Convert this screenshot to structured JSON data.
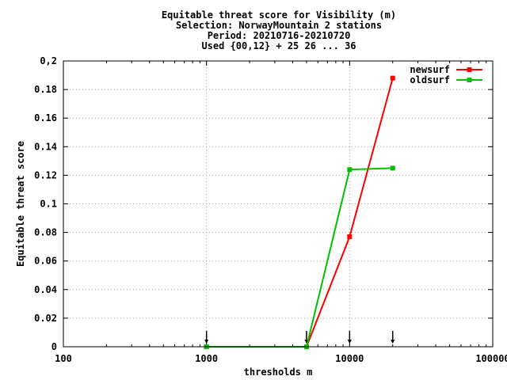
{
  "chart_data": {
    "type": "line",
    "title_lines": [
      "Equitable threat score  for Visibility (m)",
      "Selection: NorwayMountain      2 stations",
      "Period: 20210716-20210720",
      "Used {00,12} + 25 26 ... 36"
    ],
    "xlabel": "thresholds m",
    "ylabel": "Equitable threat score",
    "xscale": "log",
    "xlim": [
      100,
      100000
    ],
    "ylim": [
      0,
      0.2
    ],
    "x_ticks": [
      100,
      1000,
      10000,
      100000
    ],
    "x_tick_labels": [
      "100",
      "1000",
      "10000",
      "100000"
    ],
    "y_ticks": [
      0,
      0.02,
      0.04,
      0.06,
      0.08,
      0.1,
      0.12,
      0.14,
      0.16,
      0.18,
      0.2
    ],
    "y_tick_labels": [
      "0",
      "0.02",
      "0.04",
      "0.06",
      "0.08",
      "0.1",
      "0.12",
      "0.14",
      "0.16",
      "0.18",
      "0,2"
    ],
    "grid": true,
    "legend_position": "top-right",
    "threshold_markers": [
      1000,
      5000,
      10000,
      20000
    ],
    "series": [
      {
        "name": "newsurf",
        "color": "#ff0000",
        "x": [
          1000,
          5000,
          10000,
          20000
        ],
        "y": [
          0.0,
          0.0,
          0.077,
          0.188
        ]
      },
      {
        "name": "oldsurf",
        "color": "#00c000",
        "x": [
          1000,
          5000,
          10000,
          20000
        ],
        "y": [
          0.0,
          0.0,
          0.124,
          0.125
        ]
      }
    ]
  }
}
